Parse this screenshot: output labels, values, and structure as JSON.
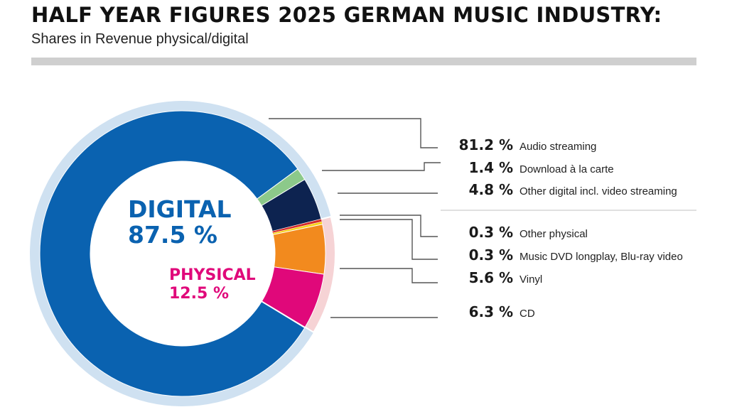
{
  "header": {
    "title": "HALF YEAR FIGURES 2025 GERMAN MUSIC INDUSTRY:",
    "subtitle": "Shares in Revenue physical/digital"
  },
  "chart_data": {
    "type": "pie",
    "variant": "donut",
    "title": "HALF YEAR FIGURES 2025 GERMAN MUSIC INDUSTRY:",
    "subtitle": "Shares in Revenue physical/digital",
    "unit": "%",
    "groups": [
      {
        "name": "DIGITAL",
        "value": 87.5,
        "value_label": "87.5 %",
        "color": "#0a62b0",
        "ring_color": "#cfe1f1"
      },
      {
        "name": "PHYSICAL",
        "value": 12.5,
        "value_label": "12.5 %",
        "color": "#e0087a",
        "ring_color": "#f6d3d5"
      }
    ],
    "slices": [
      {
        "label": "Audio streaming",
        "value": 81.2,
        "value_label": "81.2 %",
        "group": "DIGITAL",
        "color": "#0a62b0"
      },
      {
        "label": "Download à la carte",
        "value": 1.4,
        "value_label": "1.4 %",
        "group": "DIGITAL",
        "color": "#8cc98a"
      },
      {
        "label": "Other digital incl. video streaming",
        "value": 4.8,
        "value_label": "4.8 %",
        "group": "DIGITAL",
        "color": "#0d2350"
      },
      {
        "label": "Other physical",
        "value": 0.3,
        "value_label": "0.3 %",
        "group": "PHYSICAL",
        "color": "#d42a2a"
      },
      {
        "label": "Music DVD longplay, Blu-ray video",
        "value": 0.3,
        "value_label": "0.3 %",
        "group": "PHYSICAL",
        "color": "#f7d21a"
      },
      {
        "label": "Vinyl",
        "value": 5.6,
        "value_label": "5.6 %",
        "group": "PHYSICAL",
        "color": "#f28a1e"
      },
      {
        "label": "CD",
        "value": 6.3,
        "value_label": "6.3 %",
        "group": "PHYSICAL",
        "color": "#e0087a"
      }
    ],
    "legend_placement": "right"
  }
}
